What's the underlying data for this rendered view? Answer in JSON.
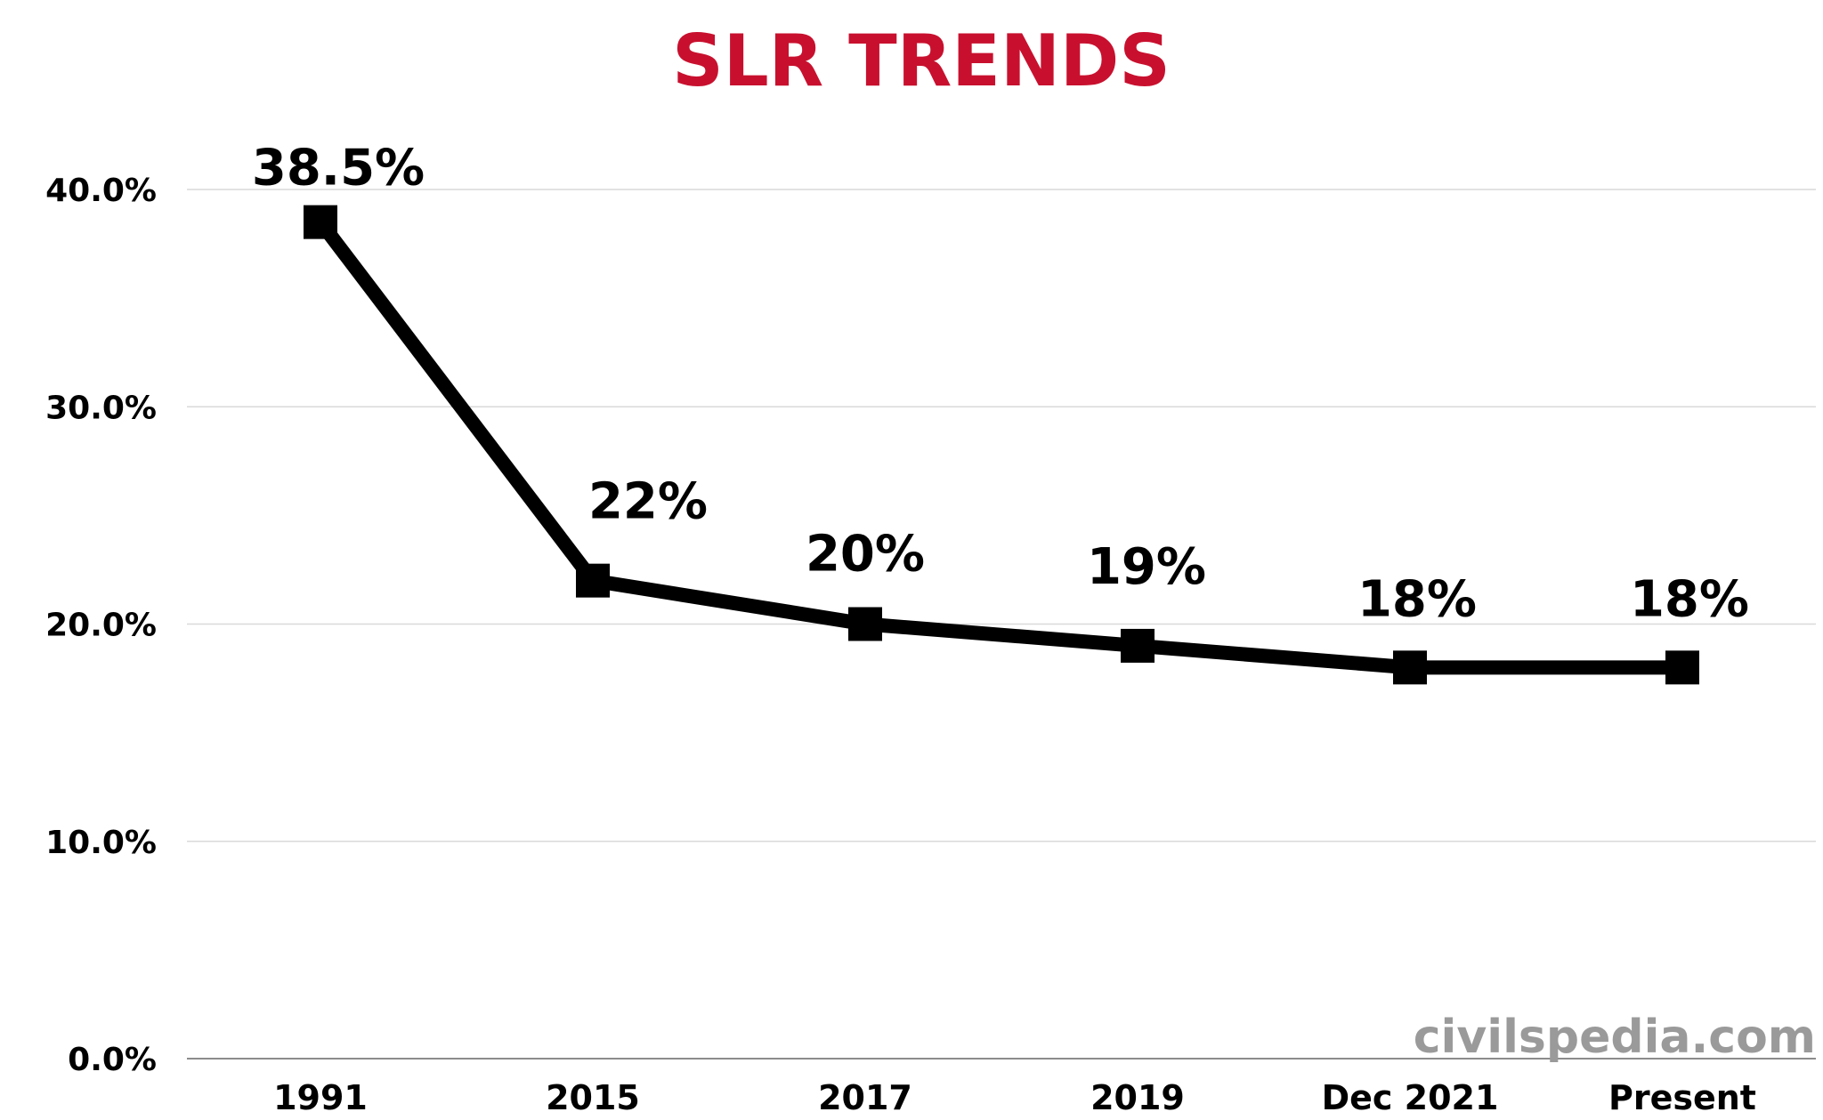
{
  "chart_data": {
    "type": "line",
    "title": "SLR TRENDS",
    "categories": [
      "1991",
      "2015",
      "2017",
      "2019",
      "Dec 2021",
      "Present"
    ],
    "series": [
      {
        "values": [
          38.5,
          22,
          20,
          19,
          18,
          18
        ]
      }
    ],
    "data_labels": [
      "38.5%",
      "22%",
      "20%",
      "19%",
      "18%",
      "18%"
    ],
    "y_ticks": [
      0,
      10,
      20,
      30,
      40
    ],
    "y_tick_labels": [
      "0.0%",
      "10.0%",
      "20.0%",
      "30.0%",
      "40.0%"
    ],
    "ylim": [
      0,
      40
    ],
    "grid": true,
    "legend": "none",
    "line_color": "#000000",
    "title_color": "#c8102e"
  },
  "watermark": "civilspedia.com"
}
